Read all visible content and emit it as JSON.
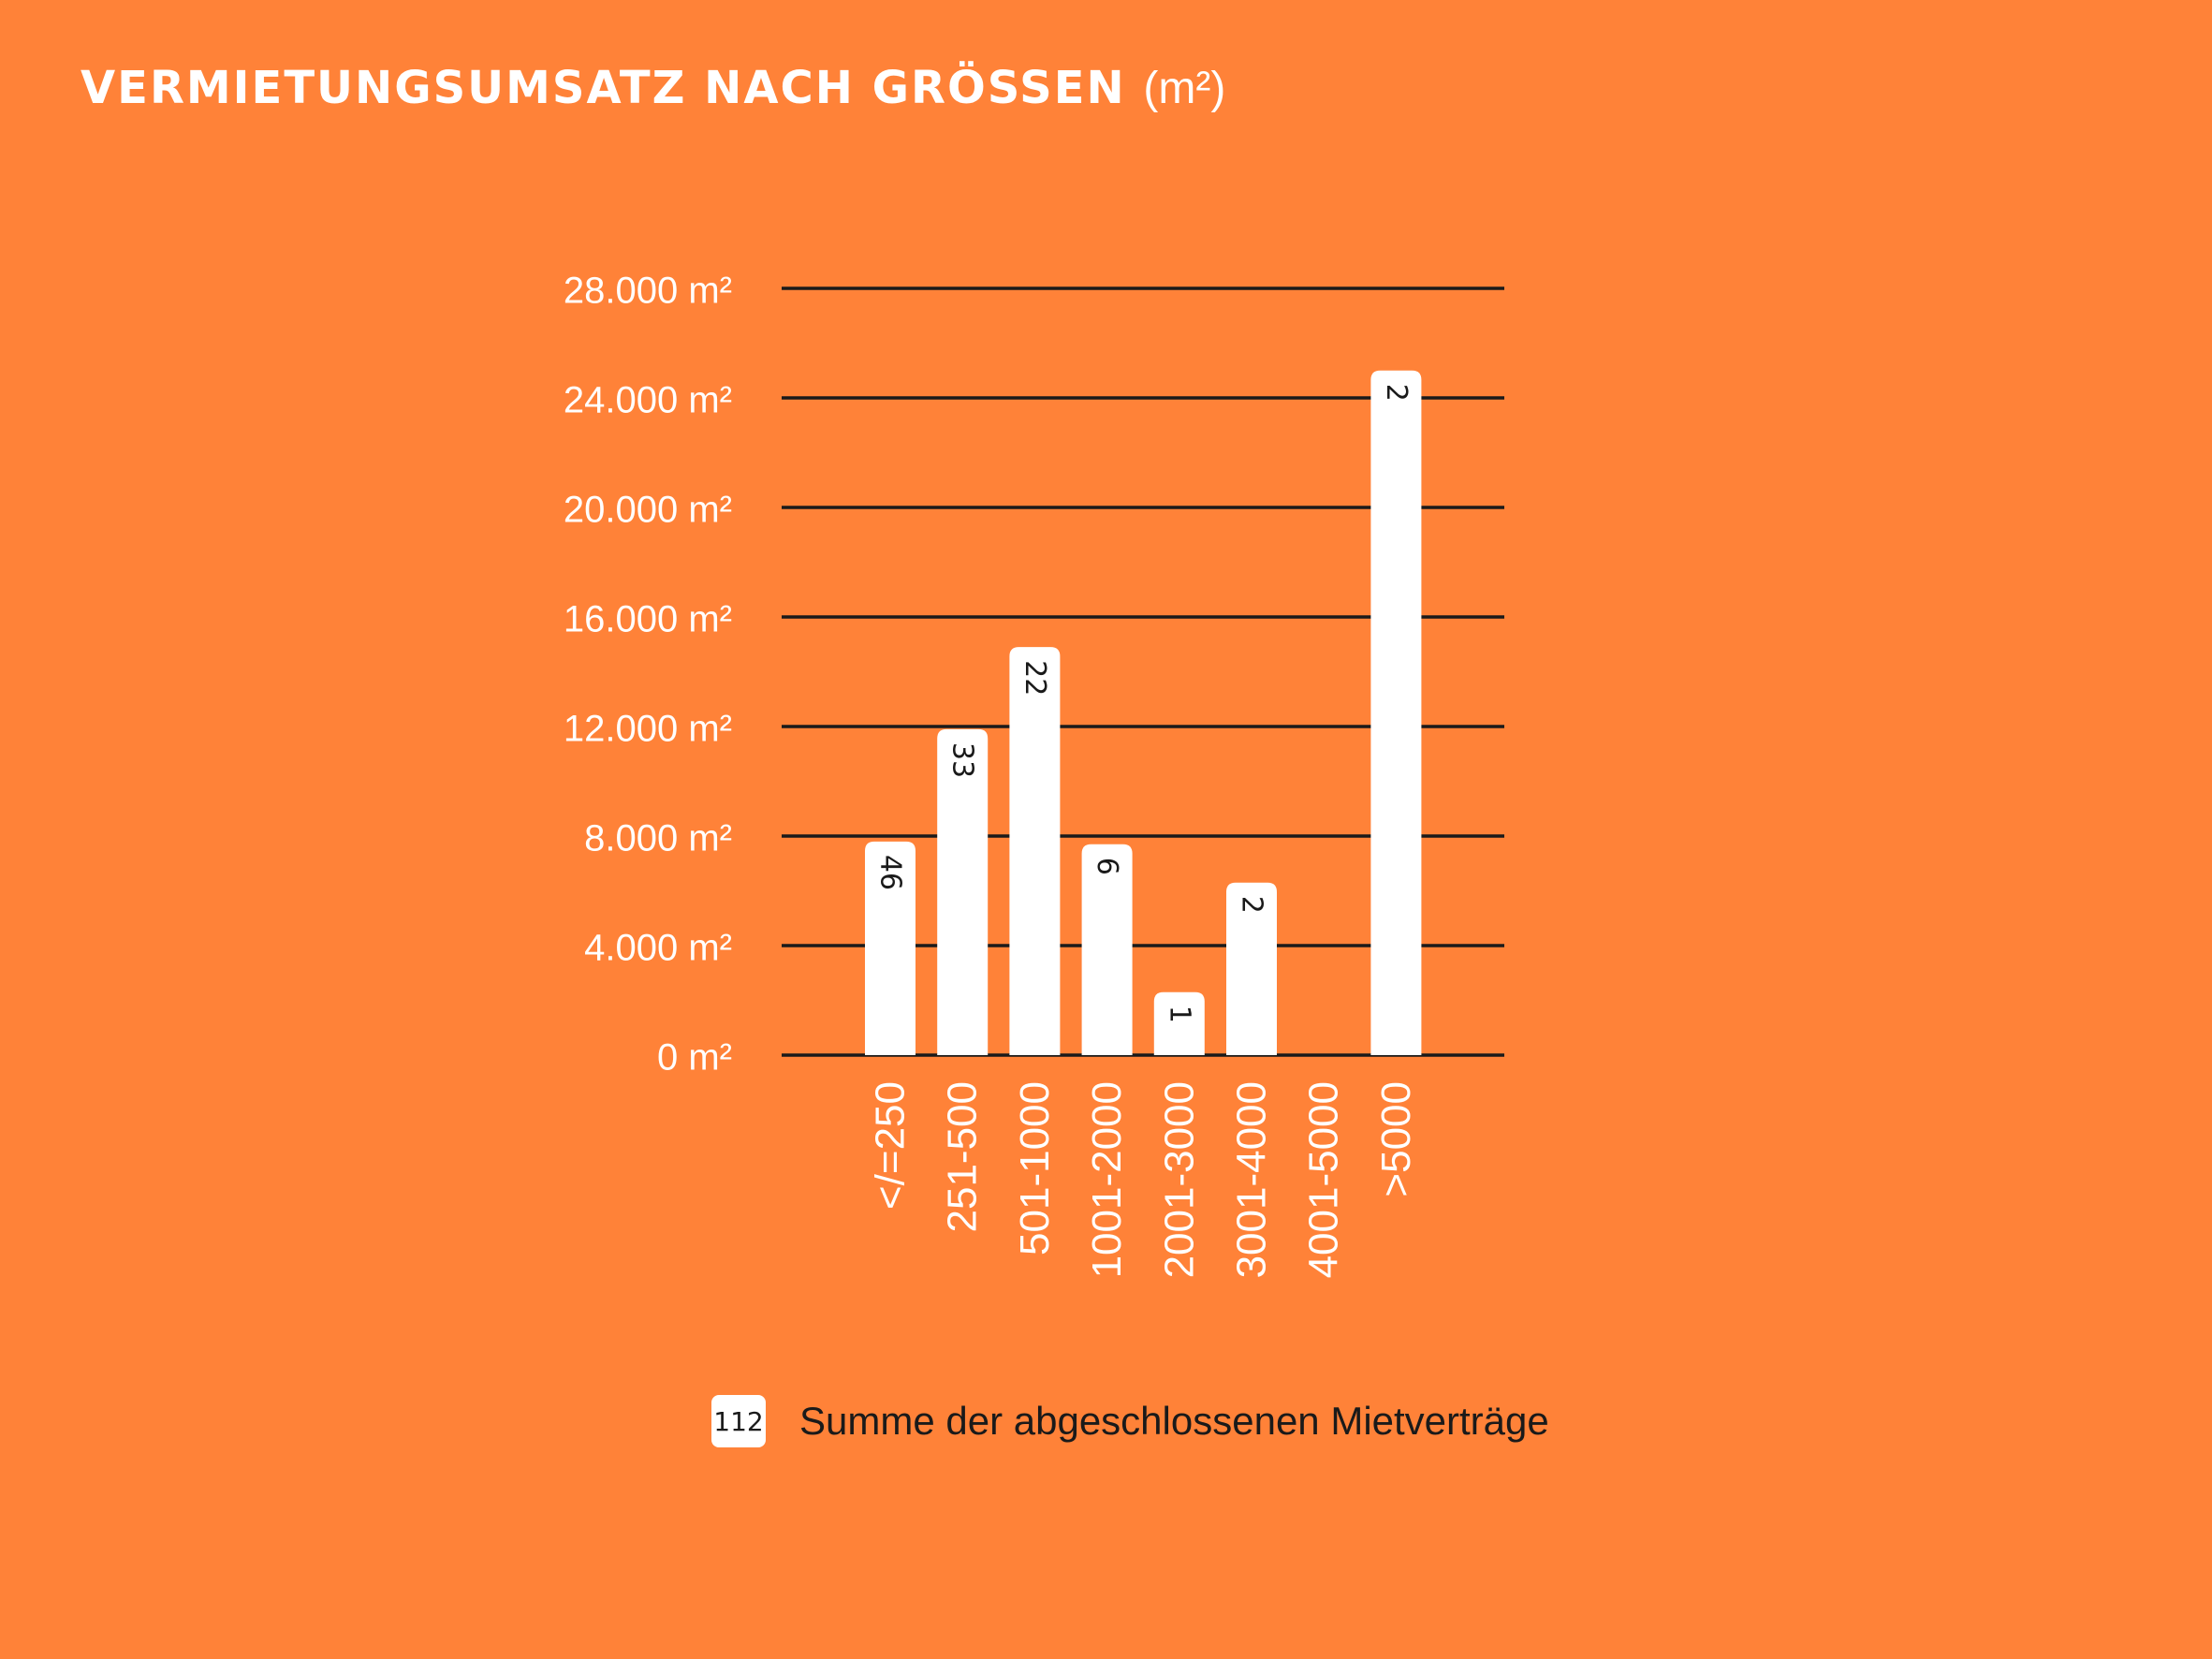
{
  "chart_data": {
    "type": "bar",
    "title": "VERMIETUNGSUMSATZ NACH GRÖSSEN",
    "title_unit": "(m²)",
    "categories": [
      "</=250",
      "251-500",
      "501-1000",
      "1001-2000",
      "2001-3000",
      "3001-4000",
      "4001-5000",
      ">5000"
    ],
    "values": [
      7800,
      11900,
      14900,
      7700,
      2300,
      6300,
      0,
      25000
    ],
    "contract_counts": [
      "46",
      "33",
      "22",
      "6",
      "1",
      "2",
      null,
      "2"
    ],
    "ylim": [
      0,
      28000
    ],
    "yticks": [
      0,
      4000,
      8000,
      12000,
      16000,
      20000,
      24000,
      28000
    ],
    "ytick_labels": [
      "0 m²",
      "4.000 m²",
      "8.000 m²",
      "12.000 m²",
      "16.000 m²",
      "20.000 m²",
      "24.000 m²",
      "28.000 m²"
    ],
    "grid": true,
    "legend": {
      "sample": "112",
      "label": "Summe der abgeschlossenen Mietverträge",
      "placement": "bottom-center"
    },
    "colors": {
      "background": "#FF8238",
      "bar": "#FFFFFF",
      "gridline": "#1A1A1A",
      "text": "#FFFFFF",
      "label_text": "#1A1A1A"
    }
  }
}
